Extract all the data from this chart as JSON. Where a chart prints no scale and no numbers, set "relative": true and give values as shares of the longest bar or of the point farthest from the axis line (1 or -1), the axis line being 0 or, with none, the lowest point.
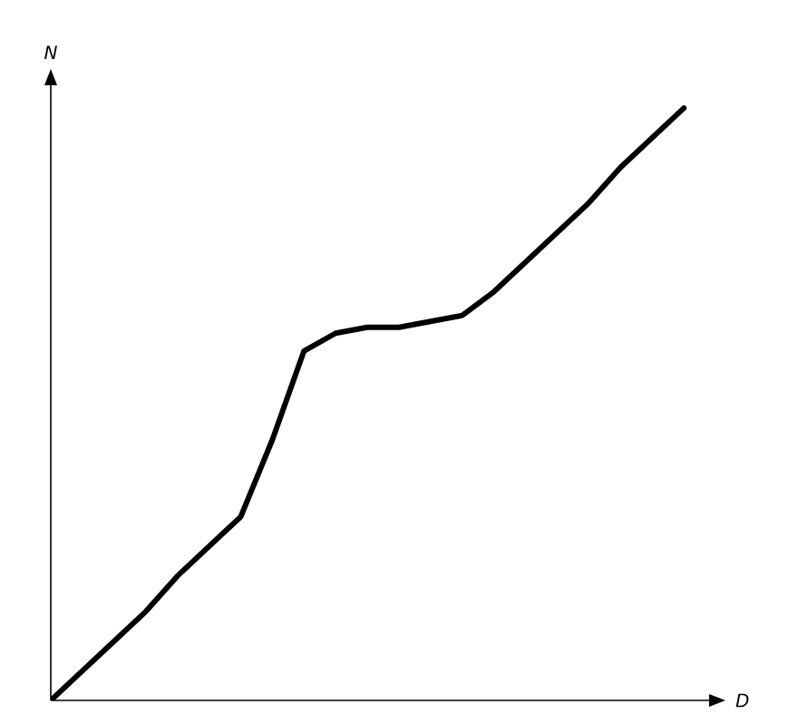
{
  "chart_data": {
    "type": "line",
    "relative": true,
    "xlabel": "D",
    "ylabel": "N",
    "color": "#000000",
    "categories": [
      null,
      null,
      null,
      null,
      null,
      null,
      null,
      null,
      null,
      null,
      null,
      null,
      null,
      null,
      null,
      null,
      null,
      null,
      null,
      null,
      null
    ],
    "values": [
      0,
      0.05,
      0.1,
      0.15,
      0.21,
      0.26,
      0.31,
      0.44,
      0.59,
      0.62,
      0.63,
      0.63,
      0.64,
      0.65,
      0.69,
      0.74,
      0.79,
      0.84,
      0.9,
      0.95,
      1.0
    ]
  }
}
